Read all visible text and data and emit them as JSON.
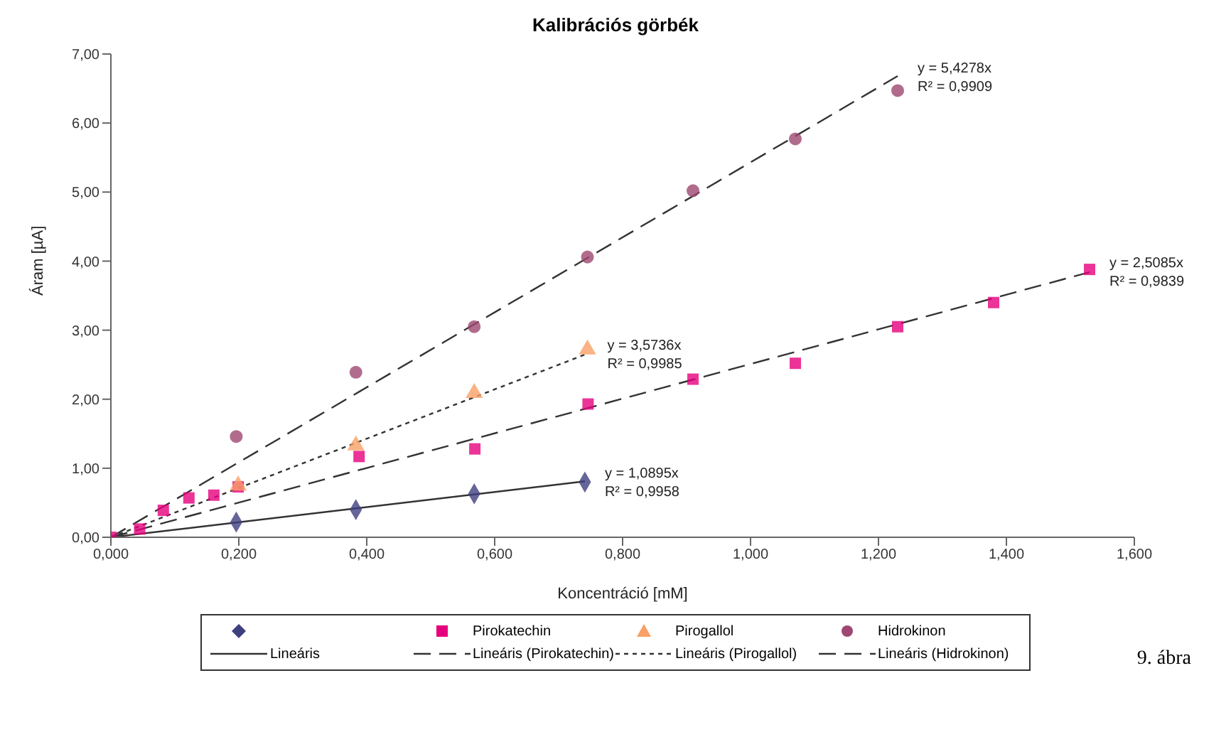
{
  "chart_data": {
    "type": "scatter",
    "title": "Kalibrációs görbék",
    "xlabel": "Koncentráció [mM]",
    "ylabel": "Áram [µA]",
    "xlim": [
      0,
      1.6
    ],
    "ylim": [
      0,
      7
    ],
    "xticks": [
      {
        "value": 0,
        "label": "0,000"
      },
      {
        "value": 0.2,
        "label": "0,200"
      },
      {
        "value": 0.4,
        "label": "0,400"
      },
      {
        "value": 0.6,
        "label": "0,600"
      },
      {
        "value": 0.8,
        "label": "0,800"
      },
      {
        "value": 1.0,
        "label": "1,000"
      },
      {
        "value": 1.2,
        "label": "1,200"
      },
      {
        "value": 1.4,
        "label": "1,400"
      },
      {
        "value": 1.6,
        "label": "1,600"
      }
    ],
    "yticks": [
      {
        "value": 0,
        "label": "0,00"
      },
      {
        "value": 1,
        "label": "1,00"
      },
      {
        "value": 2,
        "label": "2,00"
      },
      {
        "value": 3,
        "label": "3,00"
      },
      {
        "value": 4,
        "label": "4,00"
      },
      {
        "value": 5,
        "label": "5,00"
      },
      {
        "value": 6,
        "label": "6,00"
      },
      {
        "value": 7,
        "label": "7,00"
      }
    ],
    "grid": false,
    "legend": "bottom",
    "series": [
      {
        "marker": "diamond",
        "color": "#3f3f7f",
        "x": [
          0.196,
          0.383,
          0.568,
          0.741
        ],
        "values": [
          0.22,
          0.4,
          0.63,
          0.8
        ]
      },
      {
        "name": "Pirokatechin",
        "marker": "square",
        "color": "#e6007e",
        "x": [
          0,
          0.045,
          0.082,
          0.122,
          0.161,
          0.199,
          0.388,
          0.569,
          0.746,
          0.91,
          1.07,
          1.23,
          1.38,
          1.53
        ],
        "values": [
          0,
          0.12,
          0.39,
          0.57,
          0.61,
          0.73,
          1.17,
          1.28,
          1.93,
          2.29,
          2.52,
          3.05,
          3.4,
          3.88
        ]
      },
      {
        "name": "Pirogallol",
        "marker": "triangle",
        "color": "#f9a066",
        "x": [
          0.199,
          0.383,
          0.568,
          0.745
        ],
        "values": [
          0.75,
          1.33,
          2.09,
          2.72
        ]
      },
      {
        "name": "Hidrokinon",
        "marker": "circle",
        "color": "#9e4770",
        "x": [
          0.196,
          0.383,
          0.568,
          0.745,
          0.91,
          1.07,
          1.23
        ],
        "values": [
          1.46,
          2.39,
          3.05,
          4.06,
          5.02,
          5.77,
          6.47
        ]
      },
      {
        "name": "Lineáris",
        "type": "line",
        "marker": "none",
        "line_style": "solid",
        "color": "#333333",
        "x": [
          0,
          0.741
        ],
        "values": [
          0,
          0.81
        ]
      },
      {
        "name": "Lineáris (Pirokatechin)",
        "type": "line",
        "marker": "none",
        "line_style": "dashed",
        "color": "#333333",
        "x": [
          0,
          1.53
        ],
        "values": [
          0,
          3.84
        ]
      },
      {
        "name": "Lineáris (Pirogallol)",
        "type": "line",
        "marker": "none",
        "line_style": "dotted",
        "color": "#333333",
        "x": [
          0,
          0.745
        ],
        "values": [
          0,
          2.66
        ]
      },
      {
        "name": "Lineáris (Hidrokinon)",
        "type": "line",
        "marker": "none",
        "line_style": "dashed",
        "color": "#333333",
        "x": [
          0,
          1.23
        ],
        "values": [
          0,
          6.68
        ]
      }
    ],
    "annotations": [
      {
        "text": "y = 1,0895x\nR² = 0,9958",
        "x": 0.741,
        "y": 0.81
      },
      {
        "text": "y = 2,5085x\nR² = 0,9839",
        "x": 1.53,
        "y": 3.84
      },
      {
        "text": "y = 3,5736x\nR² = 0,9985",
        "x": 0.745,
        "y": 2.66
      },
      {
        "text": "y = 5,4278x\nR² = 0,9909",
        "x": 1.23,
        "y": 6.68
      },
      "9. ábra"
    ]
  }
}
